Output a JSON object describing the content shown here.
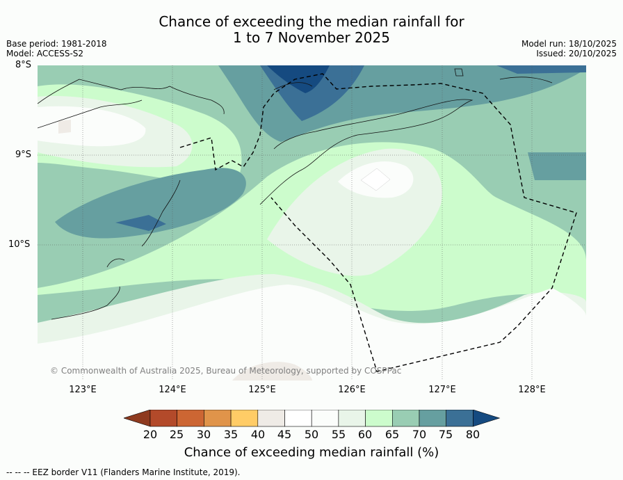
{
  "title": {
    "line1": "Chance of exceeding the median rainfall for",
    "line2": "1 to 7 November 2025"
  },
  "meta": {
    "base_period": "Base period: 1981-2018",
    "model": "Model: ACCESS-S2",
    "model_run": "Model run: 18/10/2025",
    "issued": "Issued: 20/10/2025"
  },
  "latitudes": [
    "8°S",
    "9°S",
    "10°S"
  ],
  "longitudes": [
    "123°E",
    "124°E",
    "125°E",
    "126°E",
    "127°E",
    "128°E"
  ],
  "copyright": "© Commonwealth of Australia 2025, Bureau of Meteorology, supported by COSPPac",
  "colorbar": {
    "ticks": [
      "20",
      "25",
      "30",
      "35",
      "40",
      "45",
      "50",
      "55",
      "60",
      "65",
      "70",
      "75",
      "80"
    ],
    "colors": [
      "#8e3a1f",
      "#b34a2a",
      "#cc6633",
      "#e0944a",
      "#ffcc66",
      "#efebe6",
      "#ffffff",
      "#fbfdfb",
      "#e9f5e9",
      "#ccfccc",
      "#99cdb3",
      "#669fa0",
      "#3b7096",
      "#154a80"
    ],
    "title": "Chance of exceeding median rainfall (%)"
  },
  "footnote": "-- -- -- EEZ border V11 (Flanders Marine Institute, 2019)."
}
